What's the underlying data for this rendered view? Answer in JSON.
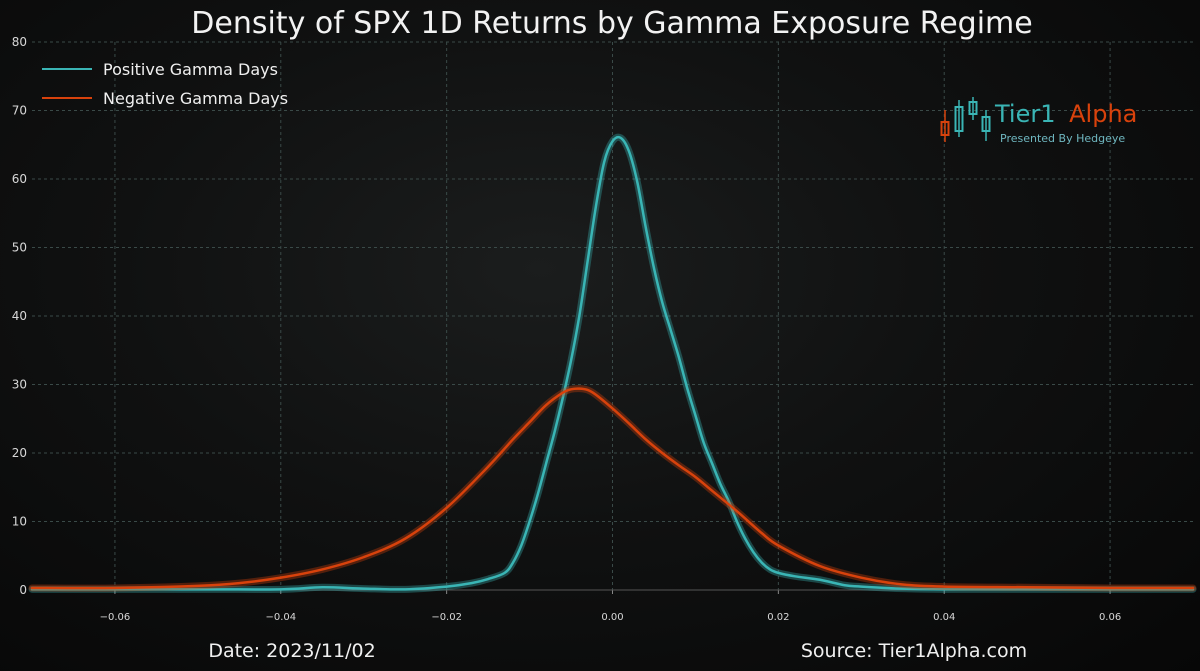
{
  "chart_data": {
    "type": "line",
    "title": "Density of SPX 1D Returns by Gamma Exposure Regime",
    "xlabel": "",
    "ylabel": "",
    "xlim": [
      -0.07,
      0.07
    ],
    "ylim": [
      0,
      80
    ],
    "x_ticks": [
      -0.06,
      -0.04,
      -0.02,
      0.0,
      0.02,
      0.04,
      0.06
    ],
    "x_tick_labels": [
      "−0.06",
      "−0.04",
      "−0.02",
      "0.00",
      "0.02",
      "0.04",
      "0.06"
    ],
    "y_ticks": [
      0,
      10,
      20,
      30,
      40,
      50,
      60,
      70,
      80
    ],
    "y_tick_labels": [
      "0",
      "10",
      "20",
      "30",
      "40",
      "50",
      "60",
      "70",
      "80"
    ],
    "grid": true,
    "legend_position": "top-left",
    "series": [
      {
        "name": "Positive Gamma Days",
        "color": "#3ab5b5",
        "x": [
          -0.07,
          -0.05,
          -0.04,
          -0.035,
          -0.03,
          -0.025,
          -0.02,
          -0.017,
          -0.015,
          -0.013,
          -0.012,
          -0.011,
          -0.01,
          -0.009,
          -0.008,
          -0.007,
          -0.006,
          -0.005,
          -0.004,
          -0.003,
          -0.002,
          -0.001,
          0.0,
          0.001,
          0.002,
          0.003,
          0.004,
          0.005,
          0.006,
          0.007,
          0.008,
          0.009,
          0.01,
          0.011,
          0.012,
          0.013,
          0.014,
          0.015,
          0.016,
          0.017,
          0.018,
          0.019,
          0.02,
          0.022,
          0.025,
          0.028,
          0.03,
          0.035,
          0.04,
          0.05,
          0.07
        ],
        "y": [
          0.1,
          0.1,
          0.1,
          0.4,
          0.2,
          0.1,
          0.5,
          1.0,
          1.6,
          2.5,
          4.0,
          6.5,
          10.0,
          14.0,
          18.5,
          23.0,
          28.0,
          33.5,
          40.0,
          48.0,
          56.0,
          62.5,
          65.5,
          66.0,
          64.0,
          59.5,
          53.0,
          47.0,
          42.0,
          38.0,
          34.0,
          29.5,
          25.5,
          21.5,
          18.5,
          15.5,
          13.0,
          10.0,
          7.5,
          5.5,
          4.0,
          3.0,
          2.5,
          2.0,
          1.5,
          0.7,
          0.5,
          0.2,
          0.1,
          0.1,
          0.1
        ]
      },
      {
        "name": "Negative Gamma Days",
        "color": "#d8420c",
        "x": [
          -0.07,
          -0.06,
          -0.05,
          -0.045,
          -0.04,
          -0.035,
          -0.03,
          -0.025,
          -0.02,
          -0.015,
          -0.012,
          -0.01,
          -0.008,
          -0.006,
          -0.005,
          -0.004,
          -0.003,
          -0.002,
          0.0,
          0.002,
          0.004,
          0.006,
          0.008,
          0.01,
          0.012,
          0.015,
          0.018,
          0.02,
          0.025,
          0.03,
          0.035,
          0.04,
          0.05,
          0.06,
          0.07
        ],
        "y": [
          0.3,
          0.3,
          0.6,
          1.0,
          1.8,
          3.0,
          4.8,
          7.5,
          12.0,
          18.0,
          22.0,
          24.5,
          27.0,
          28.8,
          29.3,
          29.4,
          29.2,
          28.5,
          26.5,
          24.3,
          22.0,
          20.0,
          18.2,
          16.5,
          14.5,
          11.5,
          8.3,
          6.5,
          3.5,
          1.8,
          0.8,
          0.5,
          0.4,
          0.3,
          0.3
        ]
      }
    ]
  },
  "footer": {
    "date_text": "Date: 2023/11/02",
    "source_text": "Source: Tier1Alpha.com"
  },
  "logo": {
    "name_part1": "Tier1",
    "name_part2": "Alpha",
    "tagline": "Presented By Hedgeye",
    "color_teal": "#3ab5b5",
    "color_orange": "#d8420c"
  }
}
